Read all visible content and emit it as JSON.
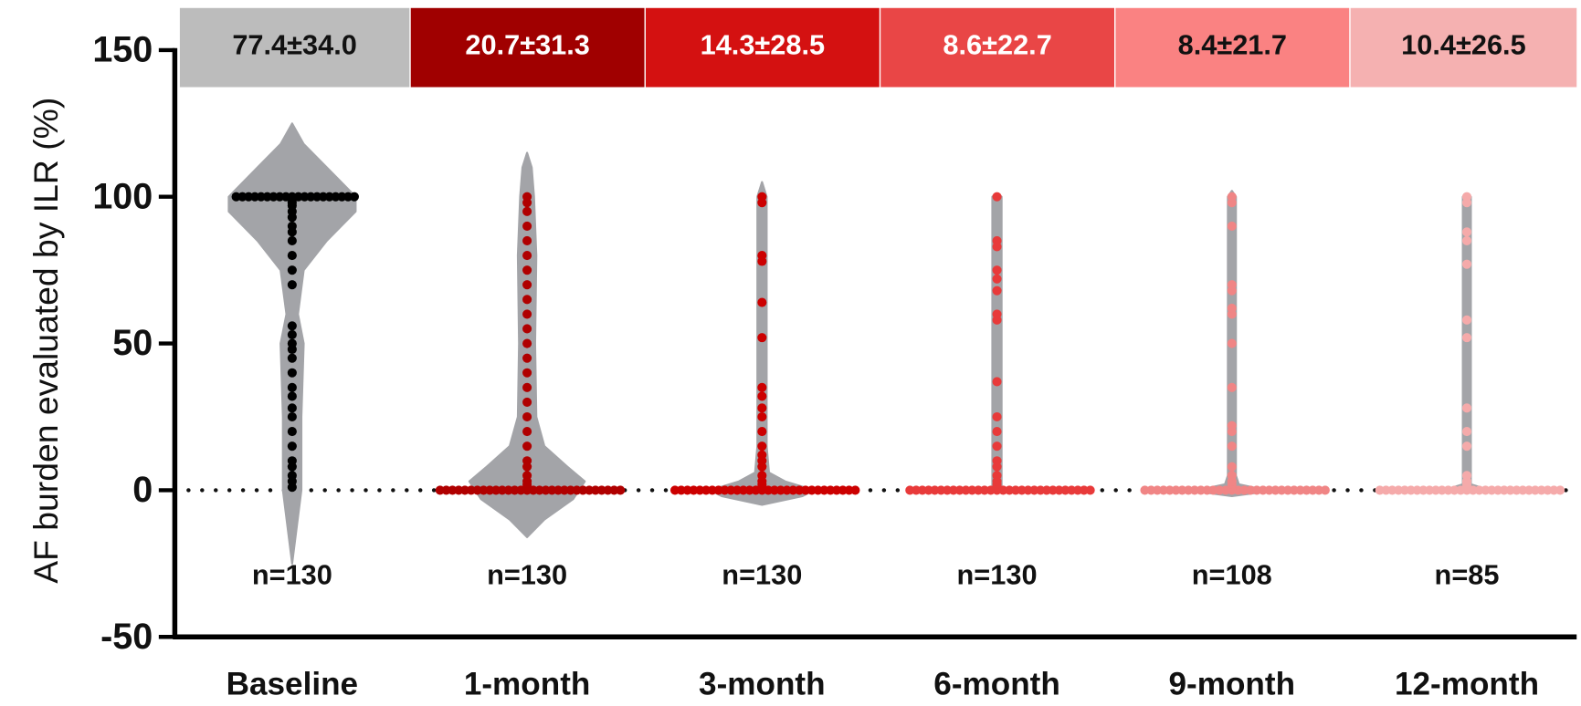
{
  "chart_data": {
    "type": "violin",
    "y_label": "AF burden evaluated by ILR (%)",
    "categories": [
      "Baseline",
      "1-month",
      "3-month",
      "6-month",
      "9-month",
      "12-month"
    ],
    "summary_labels": [
      "77.4±34.0",
      "20.7±31.3",
      "14.3±28.5",
      "8.6±22.7",
      "8.4±21.7",
      "10.4±26.5"
    ],
    "summary_colors": [
      "#bcbcbc",
      "#a00000",
      "#d41111",
      "#e94646",
      "#fa8282",
      "#f5b1b1"
    ],
    "summary_text_colors": [
      "#111111",
      "#ffffff",
      "#ffffff",
      "#ffffff",
      "#111111",
      "#111111"
    ],
    "n_labels": [
      "n=130",
      "n=130",
      "n=130",
      "n=130",
      "n=108",
      "n=85"
    ],
    "violin_color": "#a3a4a8",
    "point_colors": [
      "#000000",
      "#b00000",
      "#cc0000",
      "#e83a3a",
      "#f08585",
      "#f5aaaa"
    ],
    "points": [
      [
        100,
        100,
        100,
        100,
        100,
        100,
        100,
        100,
        100,
        100,
        100,
        100,
        100,
        100,
        100,
        100,
        100,
        100,
        100,
        100,
        98,
        97,
        95,
        93,
        90,
        88,
        85,
        80,
        75,
        70,
        56,
        53,
        50,
        48,
        45,
        40,
        35,
        32,
        28,
        25,
        20,
        15,
        10,
        8,
        5,
        3,
        1
      ],
      [
        0,
        0,
        0,
        0,
        0,
        0,
        0,
        0,
        0,
        0,
        0,
        0,
        0,
        0,
        0,
        0,
        0,
        0,
        0,
        0,
        0,
        0,
        0,
        0,
        0,
        0,
        0,
        0,
        0,
        0,
        1,
        2,
        3,
        5,
        8,
        10,
        15,
        20,
        25,
        30,
        35,
        40,
        45,
        50,
        55,
        60,
        65,
        70,
        75,
        80,
        85,
        90,
        95,
        98,
        100
      ],
      [
        0,
        0,
        0,
        0,
        0,
        0,
        0,
        0,
        0,
        0,
        0,
        0,
        0,
        0,
        0,
        0,
        0,
        0,
        0,
        0,
        0,
        0,
        0,
        0,
        0,
        0,
        0,
        0,
        0,
        0,
        1,
        2,
        3,
        5,
        8,
        10,
        12,
        15,
        20,
        25,
        28,
        32,
        35,
        52,
        64,
        78,
        80,
        98,
        100
      ],
      [
        0,
        0,
        0,
        0,
        0,
        0,
        0,
        0,
        0,
        0,
        0,
        0,
        0,
        0,
        0,
        0,
        0,
        0,
        0,
        0,
        0,
        0,
        0,
        0,
        0,
        0,
        0,
        0,
        0,
        0,
        1,
        2,
        3,
        5,
        8,
        10,
        15,
        20,
        25,
        37,
        58,
        60,
        68,
        72,
        75,
        83,
        85,
        100
      ],
      [
        0,
        0,
        0,
        0,
        0,
        0,
        0,
        0,
        0,
        0,
        0,
        0,
        0,
        0,
        0,
        0,
        0,
        0,
        0,
        0,
        0,
        0,
        0,
        0,
        0,
        0,
        0,
        0,
        0,
        0,
        1,
        2,
        3,
        5,
        8,
        15,
        20,
        22,
        35,
        50,
        60,
        62,
        68,
        70,
        90,
        98,
        100
      ],
      [
        0,
        0,
        0,
        0,
        0,
        0,
        0,
        0,
        0,
        0,
        0,
        0,
        0,
        0,
        0,
        0,
        0,
        0,
        0,
        0,
        0,
        0,
        0,
        0,
        0,
        0,
        0,
        0,
        0,
        0,
        1,
        2,
        3,
        5,
        15,
        20,
        28,
        52,
        58,
        77,
        85,
        88,
        98,
        100
      ]
    ],
    "density_y": [
      [
        -25,
        0,
        25,
        50,
        60,
        75,
        85,
        95,
        100,
        110,
        118,
        125
      ],
      [
        -16,
        -10,
        -3,
        3,
        8,
        15,
        25,
        50,
        80,
        100,
        110,
        115
      ],
      [
        -5,
        -2,
        0,
        3,
        6,
        15,
        50,
        100,
        105
      ],
      [
        -1,
        0,
        100,
        101
      ],
      [
        -2,
        -1,
        0,
        2,
        5,
        100,
        102
      ],
      [
        -1,
        0,
        2,
        100,
        101
      ]
    ],
    "density": [
      [
        0,
        0.08,
        0.08,
        0.1,
        0.05,
        0.1,
        0.3,
        0.55,
        0.55,
        0.3,
        0.1,
        0
      ],
      [
        0,
        0.15,
        0.4,
        0.5,
        0.35,
        0.15,
        0.08,
        0.07,
        0.08,
        0.06,
        0.04,
        0
      ],
      [
        0,
        0.35,
        0.45,
        0.2,
        0.06,
        0.04,
        0.04,
        0.04,
        0
      ],
      [
        0,
        0.04,
        0.04,
        0
      ],
      [
        0,
        0.2,
        0.3,
        0.06,
        0.035,
        0.035,
        0
      ],
      [
        0,
        0.2,
        0.035,
        0.035,
        0
      ]
    ],
    "reference_line": 0,
    "ylim": [
      -50,
      150
    ],
    "yticks": [
      -50,
      0,
      50,
      100,
      150
    ]
  }
}
